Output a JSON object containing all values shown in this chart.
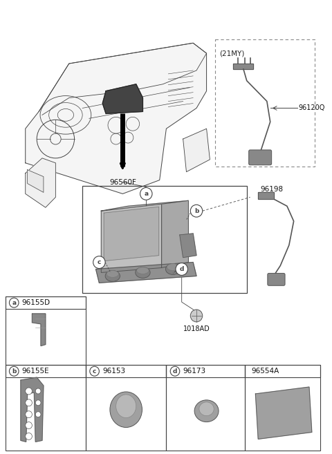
{
  "bg_color": "#ffffff",
  "line_color": "#444444",
  "light_gray": "#aaaaaa",
  "mid_gray": "#888888",
  "dark_gray": "#555555",
  "label_96560F": "96560F",
  "label_96120Q": "96120Q",
  "label_21MY": "(21MY)",
  "label_96198": "96198",
  "label_1018AD": "1018AD",
  "label_96155D": "96155D",
  "label_96155E": "96155E",
  "label_96153": "96153",
  "label_96173": "96173",
  "label_96554A": "96554A",
  "letters": [
    "a",
    "b",
    "c",
    "d"
  ]
}
